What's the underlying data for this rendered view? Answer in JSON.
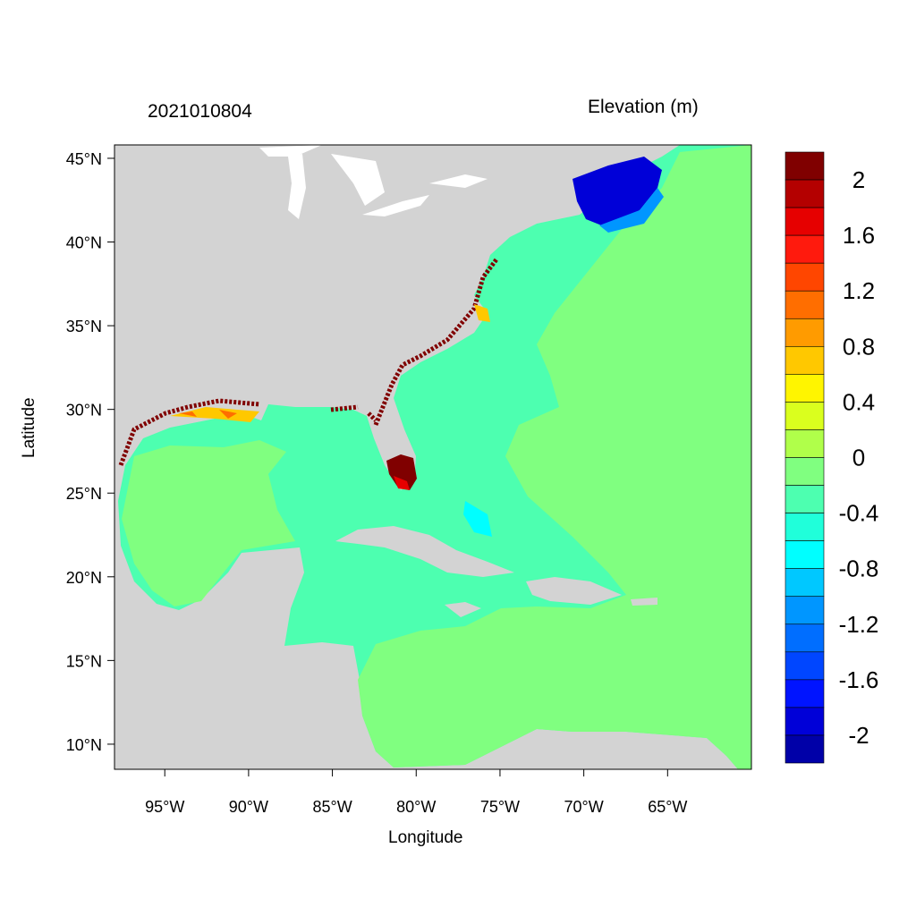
{
  "title_left": "2021010804",
  "title_right": "Elevation (m)",
  "xlabel": "Longitude",
  "ylabel": "Latitude",
  "x_ticks": [
    {
      "lon": -95,
      "label": "95°W"
    },
    {
      "lon": -90,
      "label": "90°W"
    },
    {
      "lon": -85,
      "label": "85°W"
    },
    {
      "lon": -80,
      "label": "80°W"
    },
    {
      "lon": -75,
      "label": "75°W"
    },
    {
      "lon": -70,
      "label": "70°W"
    },
    {
      "lon": -65,
      "label": "65°W"
    }
  ],
  "y_ticks": [
    {
      "lat": 45,
      "label": "45°N"
    },
    {
      "lat": 40,
      "label": "40°N"
    },
    {
      "lat": 35,
      "label": "35°N"
    },
    {
      "lat": 30,
      "label": "30°N"
    },
    {
      "lat": 25,
      "label": "25°N"
    },
    {
      "lat": 20,
      "label": "20°N"
    },
    {
      "lat": 15,
      "label": "15°N"
    },
    {
      "lat": 10,
      "label": "10°N"
    }
  ],
  "map_extent": {
    "lon": [
      -98,
      -60
    ],
    "lat": [
      8.5,
      45.8
    ]
  },
  "colorbar": {
    "labels": [
      "2",
      "1.6",
      "1.2",
      "0.8",
      "0.4",
      "0",
      "-0.4",
      "-0.8",
      "-1.2",
      "-1.6",
      "-2"
    ],
    "colors": [
      "#800000",
      "#B40000",
      "#E60000",
      "#FF1A0D",
      "#FF4600",
      "#FF6E00",
      "#FF9B00",
      "#FFC800",
      "#FFF500",
      "#DAFF1E",
      "#B0FF4A",
      "#80FF80",
      "#4DFFB0",
      "#20FFDA",
      "#00FFFF",
      "#00C8FF",
      "#0096FF",
      "#006EFF",
      "#0046FF",
      "#0014FF",
      "#0000D8",
      "#0000A8"
    ]
  },
  "colors": {
    "land": "#D3D3D3",
    "lakes": "#FFFFFF"
  }
}
